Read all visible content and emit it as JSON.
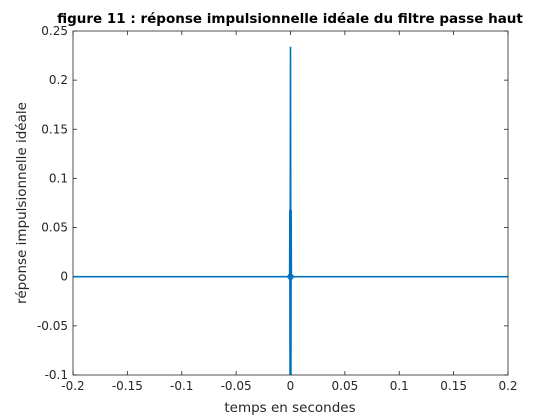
{
  "colors": {
    "series": "#0072bd",
    "axis": "#262626",
    "background": "#ffffff"
  },
  "chart_data": {
    "type": "line",
    "title": "figure 11 : réponse impulsionnelle idéale du filtre passe haut",
    "xlabel": "temps en secondes",
    "ylabel": "réponse impulsionnelle idéale",
    "xlim": [
      -0.2,
      0.2
    ],
    "ylim": [
      -0.1,
      0.25
    ],
    "xticks": [
      -0.2,
      -0.15,
      -0.1,
      -0.05,
      0,
      0.05,
      0.1,
      0.15,
      0.2
    ],
    "xtick_labels": [
      "-0.2",
      "-0.15",
      "-0.1",
      "-0.05",
      "0",
      "0.05",
      "0.1",
      "0.15",
      "0.2"
    ],
    "yticks": [
      -0.1,
      -0.05,
      0,
      0.05,
      0.1,
      0.15,
      0.2,
      0.25
    ],
    "ytick_labels": [
      "-0.1",
      "-0.05",
      "0",
      "0.05",
      "0.1",
      "0.15",
      "0.2",
      "0.25"
    ],
    "grid": false,
    "series": [
      {
        "x": [
          -0.2,
          -0.0008,
          -0.0006,
          -0.0004,
          -0.0002,
          0,
          0.0002,
          0.0004,
          0.0006,
          0.0008,
          0.2
        ],
        "y": [
          0,
          0,
          0.068,
          -0.1,
          0.068,
          0.234,
          0.068,
          -0.1,
          0.068,
          0,
          0
        ]
      }
    ],
    "markers": [
      {
        "x": 0,
        "y": 0
      }
    ]
  }
}
